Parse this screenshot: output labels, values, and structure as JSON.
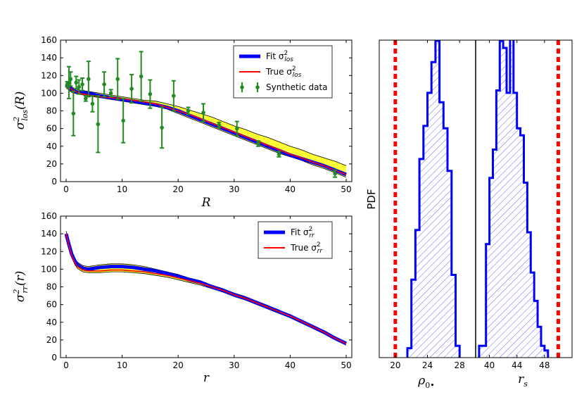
{
  "colors": {
    "fit": "#0000ff",
    "true": "#ff0000",
    "data": "#228b22",
    "band": "#ffff33",
    "truth_line": "#ff0000"
  },
  "chart_data": [
    {
      "id": "los",
      "type": "line",
      "xlabel": "R",
      "ylabel": "σ²_los(R)",
      "xlim": [
        -1,
        51
      ],
      "ylim": [
        0,
        160
      ],
      "xticks": [
        0,
        10,
        20,
        30,
        40,
        50
      ],
      "yticks": [
        0,
        20,
        40,
        60,
        80,
        100,
        120,
        140,
        160
      ],
      "legend": [
        "Fit σ²_los",
        "True σ²_los",
        "Synthetic data"
      ],
      "legend_position": "top-right",
      "x": [
        0,
        1,
        2,
        3,
        4,
        6,
        8,
        10,
        12,
        14,
        16,
        18,
        20,
        22,
        24,
        26,
        28,
        30,
        32,
        34,
        36,
        38,
        40,
        42,
        44,
        46,
        48,
        50
      ],
      "fit": [
        110,
        104,
        101,
        101,
        100,
        97,
        95,
        93,
        91,
        89,
        87,
        84,
        80,
        75,
        70,
        65,
        60,
        55,
        50,
        45,
        40,
        35,
        30,
        26,
        22,
        18,
        13,
        8
      ],
      "true": [
        109,
        104,
        101,
        99,
        98,
        96,
        95,
        94,
        92,
        90,
        88,
        84,
        80,
        76,
        71,
        66,
        61,
        56,
        51,
        46,
        41,
        36,
        31,
        27,
        22,
        18,
        13,
        8
      ],
      "band_upper": [
        112,
        107,
        104,
        103,
        102,
        100,
        98,
        96,
        94,
        92,
        91,
        88,
        85,
        81,
        77,
        73,
        68,
        63,
        59,
        54,
        50,
        45,
        40,
        36,
        31,
        27,
        23,
        18
      ],
      "band_lower": [
        106,
        101,
        99,
        98,
        97,
        95,
        93,
        91,
        89,
        87,
        85,
        82,
        77,
        72,
        67,
        62,
        57,
        52,
        47,
        42,
        37,
        32,
        28,
        24,
        19,
        15,
        10,
        5
      ],
      "data_points": [
        {
          "x": 0.2,
          "y": 110,
          "err": 3
        },
        {
          "x": 0.5,
          "y": 112,
          "err": 18
        },
        {
          "x": 0.8,
          "y": 116,
          "err": 8
        },
        {
          "x": 1.3,
          "y": 77,
          "err": 25
        },
        {
          "x": 1.8,
          "y": 112,
          "err": 7
        },
        {
          "x": 2.3,
          "y": 107,
          "err": 8
        },
        {
          "x": 2.9,
          "y": 110,
          "err": 7
        },
        {
          "x": 3.5,
          "y": 94,
          "err": 3
        },
        {
          "x": 4.0,
          "y": 116,
          "err": 20
        },
        {
          "x": 4.7,
          "y": 88,
          "err": 9
        },
        {
          "x": 5.7,
          "y": 65,
          "err": 32
        },
        {
          "x": 6.8,
          "y": 110,
          "err": 14
        },
        {
          "x": 8.0,
          "y": 100,
          "err": 4
        },
        {
          "x": 9.2,
          "y": 116,
          "err": 23
        },
        {
          "x": 10.2,
          "y": 69,
          "err": 25
        },
        {
          "x": 11.7,
          "y": 105,
          "err": 16
        },
        {
          "x": 13.4,
          "y": 119,
          "err": 28
        },
        {
          "x": 15.0,
          "y": 99,
          "err": 16
        },
        {
          "x": 17.1,
          "y": 61,
          "err": 23
        },
        {
          "x": 19.2,
          "y": 97,
          "err": 17
        },
        {
          "x": 21.8,
          "y": 80,
          "err": 4
        },
        {
          "x": 24.5,
          "y": 78,
          "err": 10
        },
        {
          "x": 27.3,
          "y": 64,
          "err": 3
        },
        {
          "x": 30.5,
          "y": 60,
          "err": 8
        },
        {
          "x": 34.3,
          "y": 43,
          "err": 3
        },
        {
          "x": 38.0,
          "y": 31,
          "err": 3
        },
        {
          "x": 48.0,
          "y": 9,
          "err": 4
        }
      ]
    },
    {
      "id": "rr",
      "type": "line",
      "xlabel": "r",
      "ylabel": "σ²_rr(r)",
      "xlim": [
        -1,
        51
      ],
      "ylim": [
        0,
        160
      ],
      "xticks": [
        0,
        10,
        20,
        30,
        40,
        50
      ],
      "yticks": [
        0,
        20,
        40,
        60,
        80,
        100,
        120,
        140,
        160
      ],
      "legend": [
        "Fit σ²_rr",
        "True σ²_rr"
      ],
      "legend_position": "top-right",
      "x": [
        0,
        0.5,
        1,
        1.5,
        2,
        3,
        4,
        5,
        6,
        8,
        10,
        12,
        14,
        16,
        18,
        20,
        22,
        24,
        26,
        28,
        30,
        32,
        34,
        36,
        38,
        40,
        42,
        44,
        46,
        48,
        50
      ],
      "fit": [
        140,
        128,
        117,
        110,
        105,
        101,
        100,
        101,
        102,
        103,
        103,
        102,
        100,
        98,
        95,
        92,
        88,
        85,
        80,
        76,
        71,
        67,
        62,
        57,
        52,
        47,
        41,
        35,
        29,
        22,
        16
      ],
      "true": [
        140,
        127,
        116,
        108,
        103,
        99,
        98,
        98,
        98,
        99,
        99,
        98,
        97,
        95,
        93,
        90,
        87,
        84,
        80,
        76,
        71,
        67,
        62,
        57,
        52,
        47,
        41,
        35,
        29,
        22,
        16
      ],
      "band_upper": [
        143,
        131,
        120,
        113,
        108,
        104,
        103,
        104,
        105,
        106,
        106,
        105,
        103,
        100,
        97,
        94,
        90,
        87,
        82,
        78,
        73,
        69,
        64,
        59,
        54,
        48,
        42,
        36,
        30,
        23,
        17
      ],
      "band_lower": [
        137,
        125,
        114,
        106,
        101,
        97,
        96,
        96,
        96,
        97,
        97,
        96,
        95,
        93,
        91,
        88,
        85,
        82,
        78,
        74,
        69,
        65,
        60,
        55,
        50,
        45,
        39,
        33,
        27,
        20,
        14
      ]
    },
    {
      "id": "rho0",
      "type": "histogram",
      "xlabel": "ρ0•",
      "ylabel": "PDF",
      "xlim": [
        18,
        30
      ],
      "xticks": [
        20,
        24,
        28
      ],
      "true_value": 20,
      "bins": [
        21.5,
        22.0,
        22.5,
        23.0,
        23.5,
        24.0,
        24.5,
        25.0,
        25.5,
        26.0,
        26.5,
        27.0,
        27.5,
        28.0
      ],
      "heights": [
        0.04,
        0.33,
        0.54,
        0.84,
        0.98,
        1.12,
        1.25,
        1.34,
        1.08,
        0.97,
        0.79,
        0.35,
        0.05
      ]
    },
    {
      "id": "rs",
      "type": "histogram",
      "xlabel": "r_s",
      "xlim": [
        38,
        52
      ],
      "xticks": [
        40,
        44,
        48
      ],
      "true_value": 50,
      "bins": [
        38.5,
        39.5,
        40.0,
        40.5,
        41.0,
        41.5,
        42.0,
        42.5,
        43.0,
        43.5,
        44.0,
        44.5,
        45.0,
        45.5,
        46.0,
        46.5,
        47.0,
        47.5,
        48.0,
        48.5
      ],
      "heights": [
        0.05,
        0.48,
        0.76,
        0.88,
        1.13,
        1.34,
        1.31,
        1.12,
        1.36,
        1.12,
        0.97,
        0.94,
        0.74,
        0.53,
        0.36,
        0.24,
        0.13,
        0.05,
        0.03
      ]
    }
  ]
}
